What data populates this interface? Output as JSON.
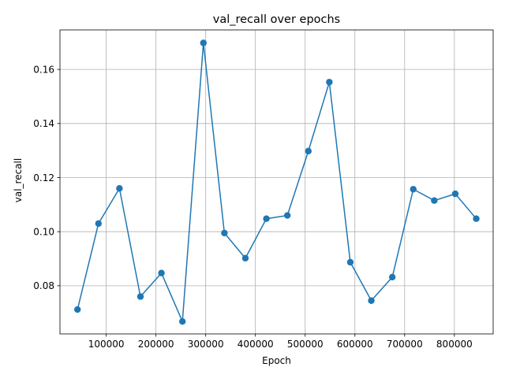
{
  "chart_data": {
    "type": "line",
    "title": "val_recall over epochs",
    "xlabel": "Epoch",
    "ylabel": "val_recall",
    "xlim": [
      7000,
      878000
    ],
    "ylim": [
      0.0622,
      0.1746
    ],
    "x_ticks": [
      100000,
      200000,
      300000,
      400000,
      500000,
      600000,
      700000,
      800000
    ],
    "x_tick_labels": [
      "100000",
      "200000",
      "300000",
      "400000",
      "500000",
      "600000",
      "700000",
      "800000"
    ],
    "y_ticks": [
      0.08,
      0.1,
      0.12,
      0.14,
      0.16
    ],
    "y_tick_labels": [
      "0.08",
      "0.10",
      "0.12",
      "0.14",
      "0.16"
    ],
    "grid": true,
    "series": [
      {
        "color": "#1f77b4",
        "marker": "circle",
        "x": [
          42200,
          84400,
          126600,
          168800,
          211000,
          253200,
          295400,
          337600,
          379800,
          422000,
          464200,
          506400,
          548600,
          590800,
          633000,
          675200,
          717400,
          759600,
          801800,
          844000
        ],
        "y": [
          0.0712,
          0.103,
          0.116,
          0.076,
          0.0847,
          0.0668,
          0.1698,
          0.0995,
          0.0902,
          0.1048,
          0.106,
          0.1298,
          0.1553,
          0.0887,
          0.0745,
          0.0832,
          0.1157,
          0.1115,
          0.114,
          0.1048
        ]
      }
    ]
  }
}
